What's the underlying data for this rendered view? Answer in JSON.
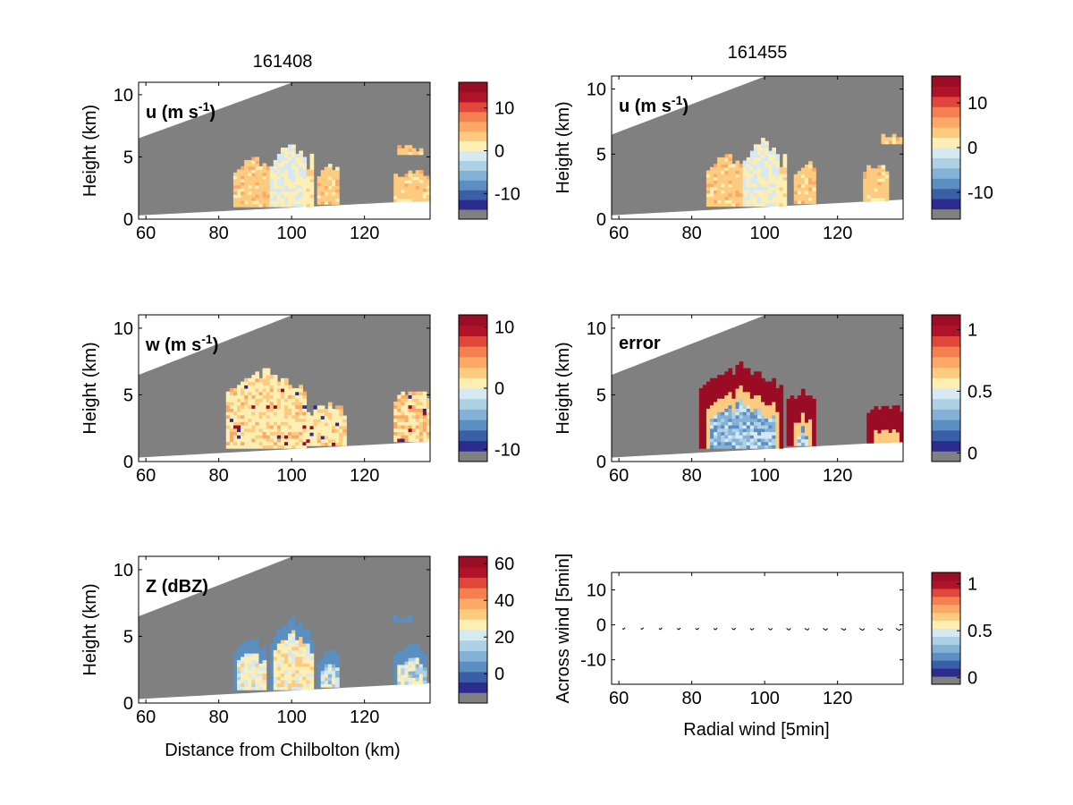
{
  "chart_data": [
    {
      "type": "heatmap",
      "panel": "u",
      "title": "161408",
      "label": "u (m s",
      "label_sup": "-1",
      "label_tail": ")",
      "xlabel": "",
      "ylabel": "Height (km)",
      "xlim": [
        58,
        138
      ],
      "ylim": [
        0,
        11
      ],
      "xticks": [
        60,
        80,
        100,
        120
      ],
      "yticks": [
        0,
        5,
        10
      ],
      "colorbar": {
        "levels": [
          -16,
          -14,
          -12,
          -10,
          -8,
          -6,
          -4,
          -2,
          0,
          2,
          4,
          6,
          8,
          10,
          12,
          14,
          16
        ],
        "ticks": [
          -10,
          0,
          10
        ],
        "missing_color": "#808080"
      },
      "mode": "u",
      "echoes": [
        {
          "x": [
            84,
            94
          ],
          "h": [
            1.0,
            5.0
          ],
          "v": 3
        },
        {
          "x": [
            94,
            104
          ],
          "h": [
            1.0,
            6.1
          ],
          "v": -2
        },
        {
          "x": [
            104,
            106
          ],
          "h": [
            1.0,
            5.2
          ],
          "v": 2
        },
        {
          "x": [
            107,
            113
          ],
          "h": [
            1.2,
            4.7
          ],
          "v": 3
        },
        {
          "x": [
            128,
            138
          ],
          "h": [
            1.4,
            4.2
          ],
          "v": 3
        },
        {
          "x": [
            129,
            136
          ],
          "h": [
            5.2,
            6.0
          ],
          "v": 3
        }
      ]
    },
    {
      "type": "heatmap",
      "panel": "u",
      "title": "161455",
      "label": "u (m s",
      "label_sup": "-1",
      "label_tail": ")",
      "xlabel": "",
      "ylabel": "Height (km)",
      "xlim": [
        58,
        138
      ],
      "ylim": [
        0,
        11
      ],
      "xticks": [
        60,
        80,
        100,
        120
      ],
      "yticks": [
        0,
        5,
        10
      ],
      "colorbar": {
        "levels": [
          -16,
          -14,
          -12,
          -10,
          -8,
          -6,
          -4,
          -2,
          0,
          2,
          4,
          6,
          8,
          10,
          12,
          14,
          16
        ],
        "ticks": [
          -10,
          0,
          10
        ],
        "missing_color": "#808080"
      },
      "mode": "u",
      "echoes": [
        {
          "x": [
            84,
            94
          ],
          "h": [
            1.0,
            5.0
          ],
          "v": 3
        },
        {
          "x": [
            94,
            104
          ],
          "h": [
            1.0,
            6.2
          ],
          "v": -2
        },
        {
          "x": [
            104,
            106
          ],
          "h": [
            1.0,
            5.0
          ],
          "v": 2
        },
        {
          "x": [
            108,
            114
          ],
          "h": [
            1.2,
            4.5
          ],
          "v": 3
        },
        {
          "x": [
            127,
            134
          ],
          "h": [
            1.4,
            4.6
          ],
          "v": 3
        },
        {
          "x": [
            132,
            138
          ],
          "h": [
            5.8,
            6.7
          ],
          "v": 3
        }
      ]
    },
    {
      "type": "heatmap",
      "panel": "w",
      "label": "w (m s",
      "label_sup": "-1",
      "label_tail": ")",
      "xlabel": "",
      "ylabel": "Height (km)",
      "xlim": [
        58,
        138
      ],
      "ylim": [
        0,
        11
      ],
      "xticks": [
        60,
        80,
        100,
        120
      ],
      "yticks": [
        0,
        5,
        10
      ],
      "colorbar": {
        "levels": [
          -12,
          -10.5,
          -9,
          -7.5,
          -6,
          -4.5,
          -3,
          -1.5,
          0,
          1.5,
          3,
          4.5,
          6,
          7.5,
          9,
          10.5,
          12
        ],
        "ticks": [
          -10,
          0,
          10
        ],
        "missing_color": "#808080"
      },
      "mode": "w",
      "echoes": [
        {
          "x": [
            82,
            104
          ],
          "h": [
            1.0,
            7.0
          ],
          "v": 1
        },
        {
          "x": [
            104,
            115
          ],
          "h": [
            1.2,
            4.6
          ],
          "v": 1
        },
        {
          "x": [
            128,
            138
          ],
          "h": [
            1.5,
            5.8
          ],
          "v": 2
        }
      ]
    },
    {
      "type": "heatmap",
      "panel": "error",
      "label": "error",
      "label_sup": "",
      "label_tail": "",
      "xlabel": "",
      "ylabel": "Height (km)",
      "xlim": [
        58,
        138
      ],
      "ylim": [
        0,
        11
      ],
      "xticks": [
        60,
        80,
        100,
        120
      ],
      "yticks": [
        0,
        5,
        10
      ],
      "colorbar": {
        "levels": [
          -0.07,
          0,
          0.07,
          0.14,
          0.21,
          0.28,
          0.35,
          0.42,
          0.49,
          0.56,
          0.63,
          0.7,
          0.77,
          0.84,
          0.91,
          0.98,
          1.05,
          1.12
        ],
        "ticks": [
          0,
          0.5,
          1
        ],
        "missing_color": "#808080"
      },
      "mode": "error",
      "echoes": [
        {
          "x": [
            82,
            105
          ],
          "h": [
            1.0,
            7.4
          ],
          "v": 1.1
        },
        {
          "x": [
            106,
            114
          ],
          "h": [
            1.2,
            5.6
          ],
          "v": 1.1
        },
        {
          "x": [
            128,
            138
          ],
          "h": [
            1.4,
            4.6
          ],
          "v": 1.1
        }
      ]
    },
    {
      "type": "heatmap",
      "panel": "Z",
      "label": "Z (dBZ)",
      "label_sup": "",
      "label_tail": "",
      "xlabel": "Distance from Chilbolton (km)",
      "ylabel": "Height (km)",
      "xlim": [
        58,
        138
      ],
      "ylim": [
        0,
        11
      ],
      "xticks": [
        60,
        80,
        100,
        120
      ],
      "yticks": [
        0,
        5,
        10
      ],
      "colorbar": {
        "levels": [
          -16,
          -11,
          -6,
          -1,
          4,
          9,
          14,
          19,
          24,
          29,
          34,
          39,
          44,
          49,
          54,
          59,
          64
        ],
        "ticks": [
          0,
          20,
          40,
          60
        ],
        "missing_color": "#808080"
      },
      "mode": "Z",
      "echoes": [
        {
          "x": [
            84,
            93
          ],
          "h": [
            1.0,
            5.0
          ],
          "v": 18
        },
        {
          "x": [
            94,
            106
          ],
          "h": [
            1.0,
            6.4
          ],
          "v": 20
        },
        {
          "x": [
            107,
            113
          ],
          "h": [
            1.2,
            4.4
          ],
          "v": 12
        },
        {
          "x": [
            128,
            137
          ],
          "h": [
            1.4,
            4.6
          ],
          "v": 12
        },
        {
          "x": [
            128,
            133
          ],
          "h": [
            6.1,
            6.8
          ],
          "v": 2
        }
      ]
    },
    {
      "type": "scatter",
      "panel": "quiver",
      "xlabel": "Radial wind [5min]",
      "ylabel": "Across wind [5min]",
      "xlim": [
        58,
        138
      ],
      "ylim": [
        -17,
        15
      ],
      "xticks": [
        60,
        80,
        100,
        120
      ],
      "yticks": [
        -10,
        0,
        10
      ],
      "colorbar": {
        "levels": [
          -0.07,
          0,
          0.07,
          0.14,
          0.21,
          0.28,
          0.35,
          0.42,
          0.49,
          0.56,
          0.63,
          0.7,
          0.77,
          0.84,
          0.91,
          0.98,
          1.05,
          1.12
        ],
        "ticks": [
          0,
          0.5,
          1
        ],
        "missing_color": "#808080"
      },
      "x": [
        61,
        66,
        71,
        76,
        81,
        86,
        91,
        96,
        101,
        106,
        111,
        116,
        121,
        126,
        131,
        136
      ],
      "y": [
        -1,
        -1,
        -1,
        -1,
        -1,
        -1,
        -1,
        -1,
        -1,
        -1,
        -1,
        -1,
        -1,
        -1,
        -1,
        -1
      ],
      "u": [
        1.0,
        1.2,
        1.4,
        1.6,
        1.8,
        2.0,
        2.2,
        2.4,
        2.6,
        2.8,
        3.0,
        3.2,
        3.4,
        3.6,
        3.8,
        4.0
      ],
      "v": [
        0.8,
        0.8,
        0.9,
        1.0,
        1.0,
        1.1,
        1.1,
        1.2,
        1.2,
        1.3,
        1.3,
        1.4,
        1.4,
        1.5,
        1.5,
        1.6
      ]
    }
  ],
  "colormap": [
    "#2c2c8f",
    "#3a5fa8",
    "#5b8fc2",
    "#84b2d6",
    "#aed0e4",
    "#d6e9f2",
    "#fdeeb3",
    "#fdcb80",
    "#fca866",
    "#f47f50",
    "#e0463a",
    "#b0122a",
    "#9b0d24"
  ],
  "missing_color": "#808080"
}
